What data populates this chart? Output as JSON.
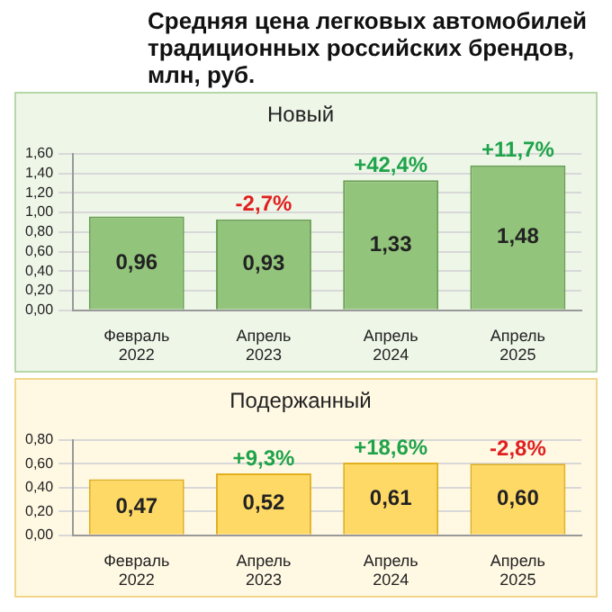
{
  "chart_data": [
    {
      "type": "bar",
      "title": "Средняя цена легковых автомобилей традиционных российских брендов, млн, руб.",
      "subtitle": "Новый",
      "categories": [
        "Февраль 2022",
        "Апрель 2023",
        "Апрель 2024",
        "Апрель 2025"
      ],
      "values": [
        0.96,
        0.93,
        1.33,
        1.48
      ],
      "value_labels": [
        "0,96",
        "0,93",
        "1,33",
        "1,48"
      ],
      "color": "#92c47c",
      "ylim": [
        0,
        1.6
      ],
      "yticks": [
        {
          "value": 0,
          "label": "0,00"
        },
        {
          "value": 0.2,
          "label": "0,20"
        },
        {
          "value": 0.4,
          "label": "0,40"
        },
        {
          "value": 0.6,
          "label": "0,60"
        },
        {
          "value": 0.8,
          "label": "0,80"
        },
        {
          "value": 1,
          "label": "1,00"
        },
        {
          "value": 1.2,
          "label": "1,20"
        },
        {
          "value": 1.4,
          "label": "1,40"
        },
        {
          "value": 1.6,
          "label": "1,60"
        }
      ],
      "grid": "y",
      "annotations": [
        {
          "text": "-2,7%",
          "x": "Апрель 2023",
          "y": 0.93
        },
        {
          "text": "+42,4%",
          "x": "Апрель 2024",
          "y": 1.33
        },
        {
          "text": "+11,7%",
          "x": "Апрель 2025",
          "y": 1.48
        }
      ]
    },
    {
      "type": "bar",
      "subtitle": "Подержанный",
      "categories": [
        "Февраль 2022",
        "Апрель 2023",
        "Апрель 2024",
        "Апрель 2025"
      ],
      "values": [
        0.47,
        0.52,
        0.61,
        0.6
      ],
      "value_labels": [
        "0,47",
        "0,52",
        "0,61",
        "0,60"
      ],
      "color": "#ffd966",
      "ylim": [
        0,
        0.8
      ],
      "yticks": [
        {
          "value": 0,
          "label": "0,00"
        },
        {
          "value": 0.2,
          "label": "0,20"
        },
        {
          "value": 0.4,
          "label": "0,40"
        },
        {
          "value": 0.6,
          "label": "0,60"
        },
        {
          "value": 0.8,
          "label": "0,80"
        }
      ],
      "grid": "y",
      "annotations": [
        {
          "text": "+9,3%",
          "x": "Апрель 2023",
          "y": 0.52
        },
        {
          "text": "+18,6%",
          "x": "Апрель 2024",
          "y": 0.61
        },
        {
          "text": "-2,8%",
          "x": "Апрель 2025",
          "y": 0.6
        }
      ]
    }
  ]
}
